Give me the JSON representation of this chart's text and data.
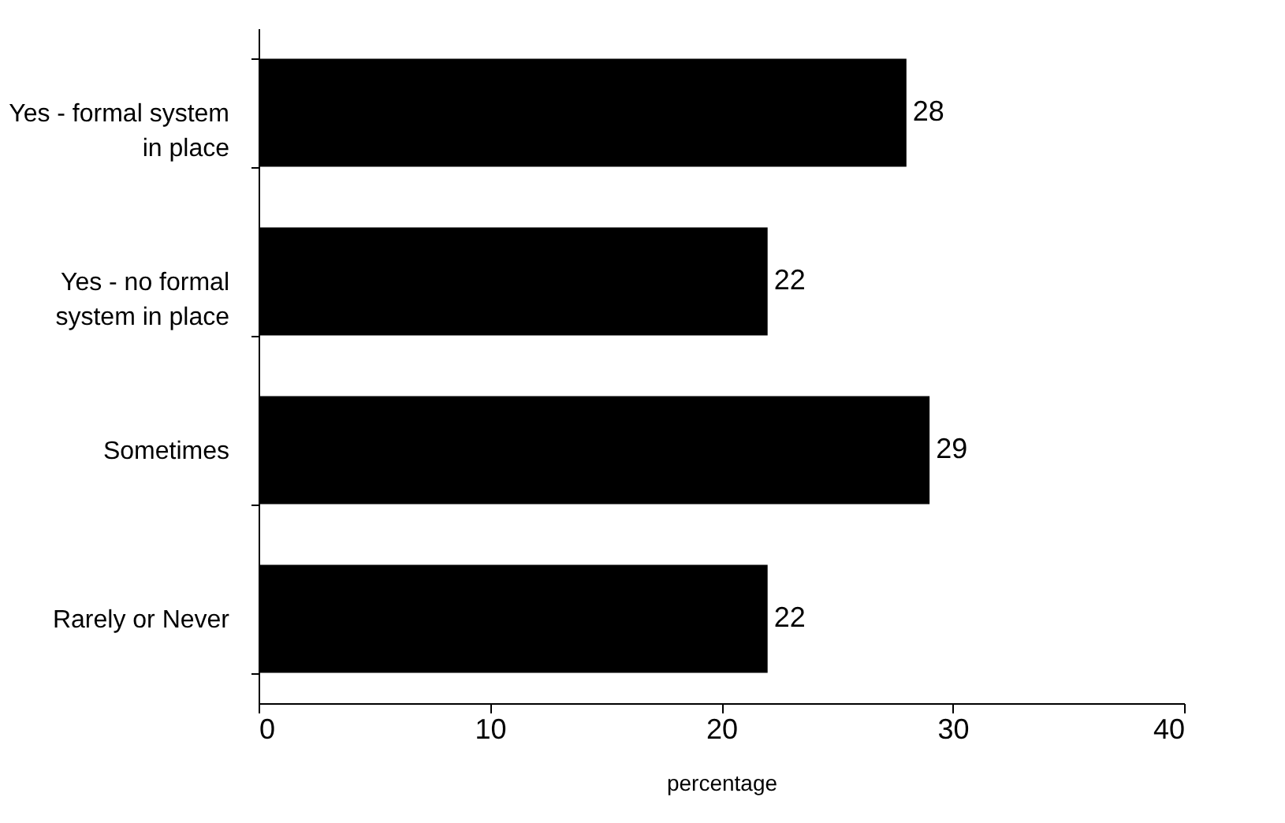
{
  "chart_data": {
    "type": "bar",
    "orientation": "horizontal",
    "xlabel": "percentage",
    "categories": [
      "Yes - formal system in place",
      "Yes - no formal system in place",
      "Sometimes",
      "Rarely or Never"
    ],
    "values": [
      28,
      22,
      29,
      22
    ],
    "color": "#000000",
    "xlim": [
      0,
      40
    ],
    "xticks": [
      0,
      10,
      20,
      30,
      40
    ],
    "grid": false,
    "data_labels": true
  }
}
